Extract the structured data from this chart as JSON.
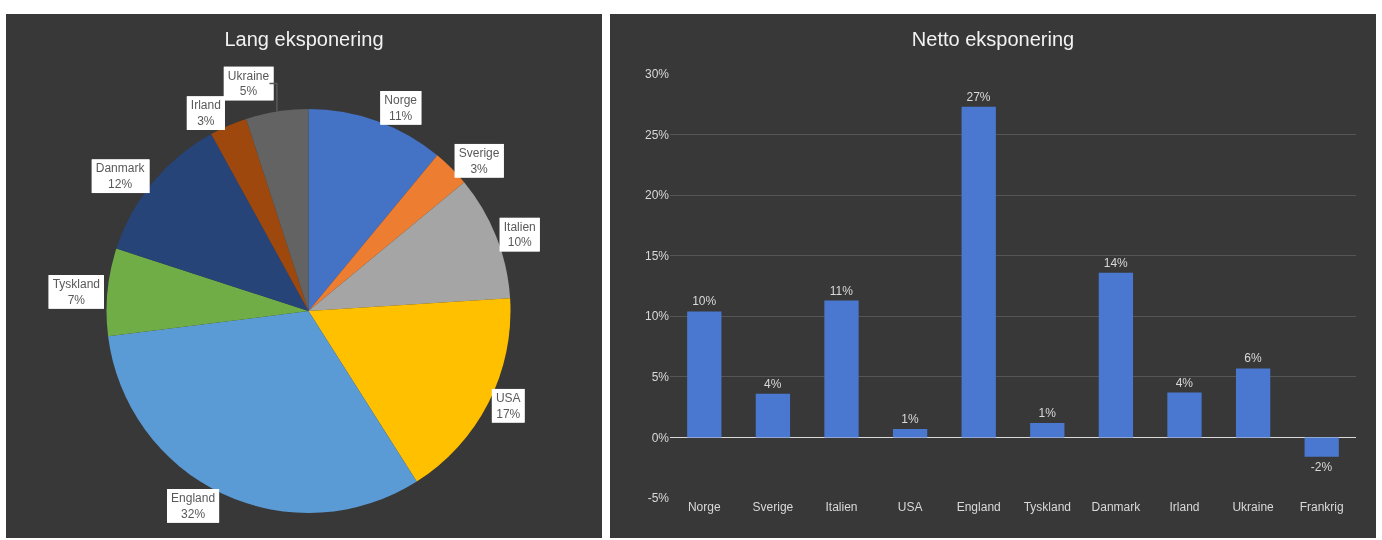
{
  "chart_data": [
    {
      "type": "pie",
      "title": "Lang eksponering",
      "categories": [
        "Norge",
        "Sverige",
        "Italien",
        "USA",
        "England",
        "Tyskland",
        "Danmark",
        "Irland",
        "Ukraine"
      ],
      "values": [
        11,
        3,
        10,
        17,
        32,
        7,
        12,
        3,
        5
      ],
      "value_labels": [
        "11%",
        "3%",
        "10%",
        "17%",
        "32%",
        "7%",
        "12%",
        "3%",
        "5%"
      ],
      "colors": [
        "#4472c4",
        "#ed7d31",
        "#a5a5a5",
        "#ffc000",
        "#5b9bd5",
        "#70ad47",
        "#264478",
        "#9e480e",
        "#636363"
      ],
      "legend": false
    },
    {
      "type": "bar",
      "title": "Netto eksponering",
      "categories": [
        "Norge",
        "Sverige",
        "Italien",
        "USA",
        "England",
        "Tyskland",
        "Danmark",
        "Irland",
        "Ukraine",
        "Frankrig"
      ],
      "values": [
        10.4,
        3.6,
        11.3,
        0.7,
        27.3,
        1.2,
        13.6,
        3.7,
        5.7,
        -1.6
      ],
      "value_labels": [
        "10%",
        "4%",
        "11%",
        "1%",
        "27%",
        "1%",
        "14%",
        "4%",
        "6%",
        "-2%"
      ],
      "color": "#4a78d0",
      "ylim": [
        -5,
        30
      ],
      "yticks": [
        {
          "value": -5,
          "label": "-5%"
        },
        {
          "value": 0,
          "label": "0%"
        },
        {
          "value": 5,
          "label": "5%"
        },
        {
          "value": 10,
          "label": "10%"
        },
        {
          "value": 15,
          "label": "15%"
        },
        {
          "value": 20,
          "label": "20%"
        },
        {
          "value": 25,
          "label": "25%"
        },
        {
          "value": 30,
          "label": "30%"
        }
      ],
      "grid": "y",
      "legend": false
    }
  ]
}
